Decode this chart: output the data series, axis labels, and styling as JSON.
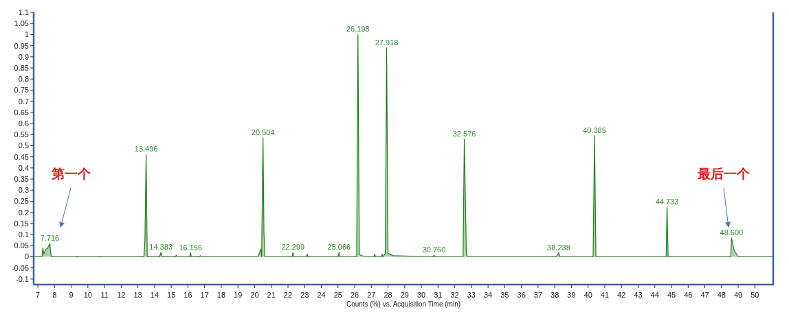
{
  "chart_data": {
    "type": "area",
    "xlabel": "Counts (%) vs. Acquisition Time (min)",
    "xlim": [
      6.75,
      51.1
    ],
    "xticks": [
      7,
      8,
      9,
      10,
      11,
      12,
      13,
      14,
      15,
      16,
      17,
      18,
      19,
      20,
      21,
      22,
      23,
      24,
      25,
      26,
      27,
      28,
      29,
      30,
      31,
      32,
      33,
      34,
      35,
      36,
      37,
      38,
      39,
      40,
      41,
      42,
      43,
      44,
      45,
      46,
      47,
      48,
      49,
      50
    ],
    "ylim": [
      -0.125,
      1.1
    ],
    "yticks": [
      -0.1,
      -0.05,
      0,
      0.05,
      0.1,
      0.15,
      0.2,
      0.25,
      0.3,
      0.35,
      0.4,
      0.45,
      0.5,
      0.55,
      0.6,
      0.65,
      0.7,
      0.75,
      0.8,
      0.85,
      0.9,
      0.95,
      1,
      1.05,
      1.1
    ],
    "grid": false,
    "series": [
      {
        "color": "#1e7d1e",
        "x": [
          6.8,
          7.25,
          7.3,
          7.36,
          7.45,
          7.6,
          7.716,
          7.8,
          9.3,
          9.35,
          9.4,
          10.7,
          10.75,
          10.8,
          13.36,
          13.42,
          13.496,
          13.56,
          14.3,
          14.383,
          14.45,
          15.25,
          15.3,
          15.35,
          16.1,
          16.156,
          16.2,
          16.7,
          16.75,
          16.8,
          20.2,
          20.38,
          20.42,
          20.504,
          20.56,
          20.62,
          22.25,
          22.299,
          22.35,
          23.1,
          23.15,
          23.2,
          25.0,
          25.066,
          25.12,
          26.12,
          26.198,
          26.28,
          26.5,
          27.15,
          27.2,
          27.25,
          27.6,
          27.65,
          27.7,
          27.84,
          27.918,
          28.0,
          28.3,
          30.7,
          30.76,
          30.82,
          32.5,
          32.576,
          32.7,
          32.8,
          38.1,
          38.238,
          38.3,
          40.3,
          40.385,
          40.47,
          44.68,
          44.733,
          44.8,
          48.55,
          48.6,
          48.75,
          49.0,
          51.1
        ],
        "values": [
          0,
          0,
          0.04,
          0.012,
          0.03,
          0.04,
          0.06,
          0,
          0,
          0.003,
          0,
          0,
          0.003,
          0,
          0,
          0.07,
          0.46,
          0,
          0,
          0.02,
          0,
          0,
          0.007,
          0,
          0,
          0.018,
          0,
          0,
          0.005,
          0,
          0,
          0.035,
          0,
          0.535,
          0.11,
          0,
          0,
          0.02,
          0,
          0,
          0.012,
          0,
          0,
          0.02,
          0,
          0,
          1.0,
          0.01,
          0.003,
          0,
          0.012,
          0,
          0,
          0.012,
          0,
          0.015,
          0.94,
          0.015,
          0.005,
          0,
          0.008,
          0,
          0,
          0.53,
          0.01,
          0,
          0,
          0.018,
          0,
          0,
          0.545,
          0,
          0,
          0.225,
          0,
          0,
          0.085,
          0.03,
          0,
          0
        ]
      }
    ],
    "annotations": [
      {
        "text": "7.716",
        "x": 7.716,
        "y": 0.06
      },
      {
        "text": "13.496",
        "x": 13.496,
        "y": 0.46
      },
      {
        "text": "14.383",
        "x": 14.383,
        "y": 0.02
      },
      {
        "text": "16.156",
        "x": 16.156,
        "y": 0.018
      },
      {
        "text": "20.504",
        "x": 20.504,
        "y": 0.535
      },
      {
        "text": "22.299",
        "x": 22.299,
        "y": 0.02
      },
      {
        "text": "25.066",
        "x": 25.066,
        "y": 0.02
      },
      {
        "text": "26.198",
        "x": 26.198,
        "y": 1.0
      },
      {
        "text": "27.918",
        "x": 27.918,
        "y": 0.94
      },
      {
        "text": "30.760",
        "x": 30.76,
        "y": 0.008
      },
      {
        "text": "32.576",
        "x": 32.576,
        "y": 0.53
      },
      {
        "text": "38.238",
        "x": 38.238,
        "y": 0.018
      },
      {
        "text": "40.385",
        "x": 40.385,
        "y": 0.545
      },
      {
        "text": "44.733",
        "x": 44.733,
        "y": 0.225
      },
      {
        "text": "48.600",
        "x": 48.6,
        "y": 0.085
      },
      "第一个",
      "最后一个"
    ]
  }
}
